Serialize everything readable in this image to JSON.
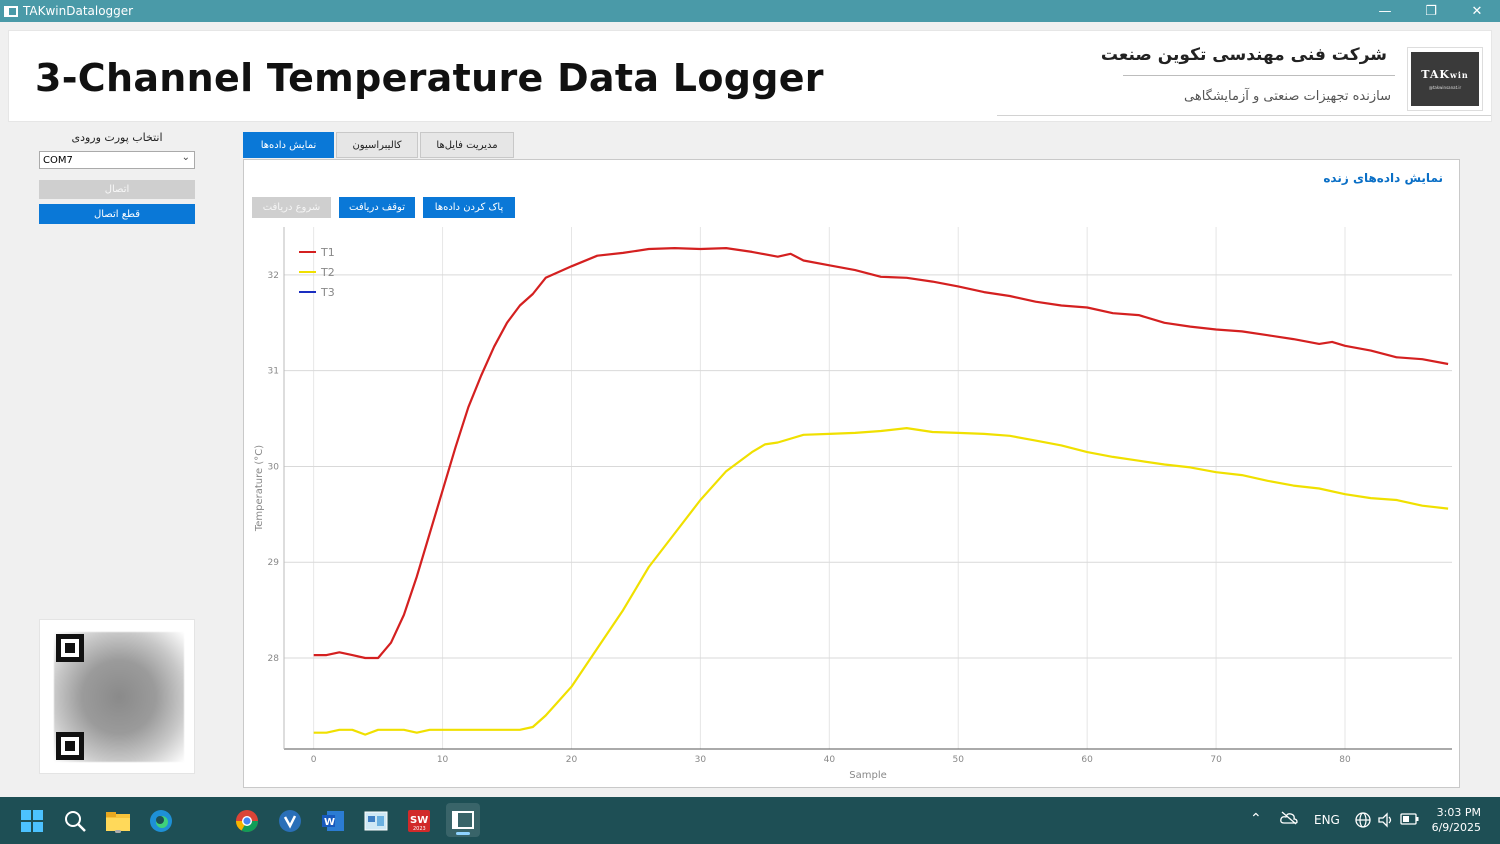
{
  "window": {
    "title": "TAKwinDatalogger",
    "minimize_glyph": "—",
    "restore_glyph": "❐",
    "close_glyph": "✕"
  },
  "header": {
    "title": "3-Channel Temperature Data Logger",
    "company": "شرکت فنی مهندسی تکوین صنعت",
    "subtitle": "سازنده تجهیزات صنعتی و آزمایشگاهی",
    "logo_text": "TAK",
    "logo_suffix": "win",
    "logo_small": "@takwinsanat.ir"
  },
  "sidebar": {
    "port_label": "انتخاب پورت ورودی",
    "port_value": "COM7",
    "connect_label": "اتصال",
    "disconnect_label": "قطع اتصال"
  },
  "tabs": [
    {
      "label": "نمایش داده‌ها",
      "active": true
    },
    {
      "label": "کالیبراسیون",
      "active": false
    },
    {
      "label": "مدیریت فایل‌ها",
      "active": false
    }
  ],
  "panel": {
    "heading": "نمایش داده‌های زنده",
    "start_label": "شروع دریافت",
    "stop_label": "توقف دریافت",
    "clear_label": "پاک کردن داده‌ها"
  },
  "chart_data": {
    "type": "line",
    "title": "",
    "xlabel": "Sample",
    "ylabel": "Temperature (°C)",
    "xlim": [
      -2.3,
      88.3
    ],
    "ylim": [
      27.05,
      32.5
    ],
    "xticks": [
      0,
      10,
      20,
      30,
      40,
      50,
      60,
      70,
      80
    ],
    "yticks": [
      28,
      29,
      30,
      31,
      32
    ],
    "grid": true,
    "legend_position": "top-left",
    "series": [
      {
        "name": "T1",
        "color": "#d42020",
        "x": [
          0,
          1,
          2,
          3,
          4,
          5,
          6,
          7,
          8,
          9,
          10,
          11,
          12,
          13,
          14,
          15,
          16,
          17,
          18,
          19,
          20,
          22,
          24,
          26,
          28,
          30,
          32,
          34,
          36,
          37,
          38,
          40,
          42,
          44,
          46,
          48,
          50,
          52,
          54,
          56,
          58,
          60,
          62,
          64,
          66,
          68,
          70,
          72,
          74,
          76,
          78,
          79,
          80,
          82,
          84,
          86,
          88
        ],
        "y": [
          28.03,
          28.03,
          28.06,
          28.03,
          28.0,
          28.0,
          28.16,
          28.45,
          28.85,
          29.3,
          29.75,
          30.2,
          30.62,
          30.95,
          31.25,
          31.5,
          31.68,
          31.8,
          31.97,
          32.03,
          32.09,
          32.2,
          32.23,
          32.27,
          32.28,
          32.27,
          32.28,
          32.24,
          32.19,
          32.22,
          32.15,
          32.1,
          32.05,
          31.98,
          31.97,
          31.93,
          31.88,
          31.82,
          31.78,
          31.72,
          31.68,
          31.66,
          31.6,
          31.58,
          31.5,
          31.46,
          31.43,
          31.41,
          31.37,
          31.33,
          31.28,
          31.3,
          31.26,
          31.21,
          31.14,
          31.12,
          31.07
        ]
      },
      {
        "name": "T2",
        "color": "#f0e000",
        "x": [
          0,
          1,
          2,
          3,
          4,
          5,
          6,
          7,
          8,
          9,
          10,
          12,
          14,
          16,
          17,
          18,
          19,
          20,
          22,
          24,
          26,
          28,
          30,
          32,
          34,
          35,
          36,
          38,
          40,
          42,
          44,
          46,
          48,
          50,
          52,
          54,
          56,
          58,
          60,
          62,
          64,
          66,
          68,
          70,
          72,
          74,
          76,
          78,
          80,
          82,
          84,
          86,
          88
        ],
        "y": [
          27.22,
          27.22,
          27.25,
          27.25,
          27.2,
          27.25,
          27.25,
          27.25,
          27.22,
          27.25,
          27.25,
          27.25,
          27.25,
          27.25,
          27.28,
          27.4,
          27.55,
          27.7,
          28.1,
          28.5,
          28.95,
          29.3,
          29.65,
          29.95,
          30.15,
          30.23,
          30.25,
          30.33,
          30.34,
          30.35,
          30.37,
          30.4,
          30.36,
          30.35,
          30.34,
          30.32,
          30.27,
          30.22,
          30.15,
          30.1,
          30.06,
          30.02,
          29.99,
          29.94,
          29.91,
          29.85,
          29.8,
          29.77,
          29.71,
          29.67,
          29.65,
          29.59,
          29.56
        ]
      },
      {
        "name": "T3",
        "color": "#1a2ec0",
        "x": [],
        "y": []
      }
    ]
  },
  "taskbar": {
    "tray_lang": "ENG",
    "time": "3:03 PM",
    "date": "6/9/2025"
  }
}
